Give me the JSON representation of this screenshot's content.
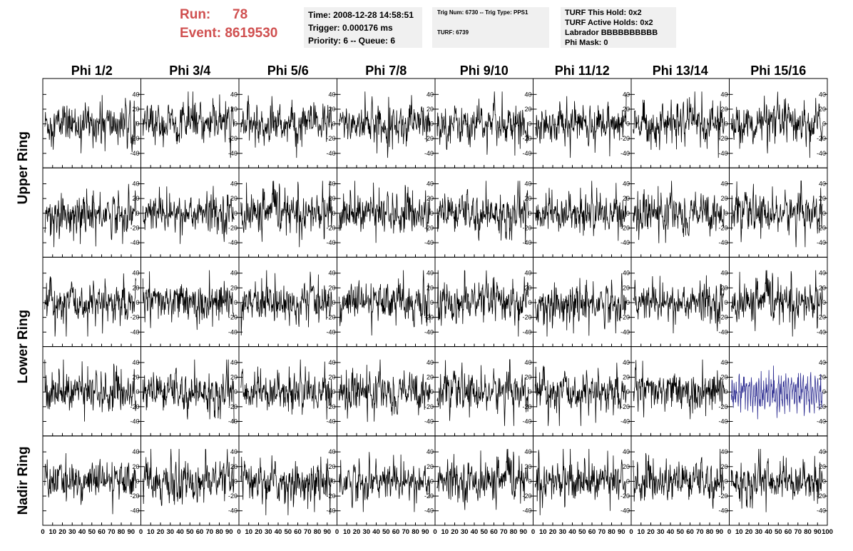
{
  "header": {
    "run_label": "Run:",
    "run_value": "78",
    "event_label": "Event:",
    "event_value": "8619530",
    "time": "Time: 2008-12-28 14:58:51",
    "trigger": "Trigger: 0.000176 ms",
    "priority": "Priority: 6 -- Queue: 6",
    "trig_num": "Trig Num: 6730 -- Trig Type: PPS1",
    "turf": "TURF: 6739",
    "turf_this_hold": "TURF This Hold: 0x2",
    "turf_active_holds": "TURF Active Holds: 0x2",
    "labrador": "Labrador BBBBBBBBBB",
    "phi_mask": "Phi Mask: 0"
  },
  "chart_data": {
    "type": "line",
    "columns": [
      "Phi 1/2",
      "Phi 3/4",
      "Phi 5/6",
      "Phi 7/8",
      "Phi 9/10",
      "Phi 11/12",
      "Phi 13/14",
      "Phi 15/16"
    ],
    "row_groups": [
      {
        "label": "Upper Ring",
        "rows": [
          0,
          1
        ]
      },
      {
        "label": "Lower Ring",
        "rows": [
          2,
          3
        ]
      },
      {
        "label": "Nadir Ring",
        "rows": [
          4
        ]
      }
    ],
    "rows": 5,
    "xlim": [
      0,
      100
    ],
    "xticks": [
      0,
      10,
      20,
      30,
      40,
      50,
      60,
      70,
      80,
      90,
      100
    ],
    "ylim": [
      -50,
      50
    ],
    "yticks": [
      40,
      20,
      0,
      -20,
      -40
    ],
    "samples_per_trace": 260,
    "trace_color": "#000000",
    "highlight_color": "#2b2b90",
    "highlight_panel": {
      "row": 3,
      "col": 7
    }
  }
}
